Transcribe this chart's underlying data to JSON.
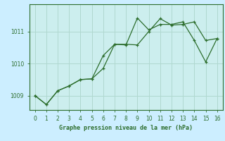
{
  "title": "Graphe pression niveau de la mer (hPa)",
  "background_color": "#cceeff",
  "plot_bg_color": "#cceeee",
  "line_color": "#2d6e2d",
  "grid_color": "#aaddcc",
  "xlim": [
    -0.5,
    16.5
  ],
  "ylim": [
    1008.55,
    1011.85
  ],
  "xticks": [
    0,
    1,
    2,
    3,
    4,
    5,
    6,
    7,
    8,
    9,
    10,
    11,
    12,
    13,
    14,
    15,
    16
  ],
  "yticks": [
    1009,
    1010,
    1011
  ],
  "series1_x": [
    0,
    1,
    2,
    3,
    4,
    5,
    6,
    7,
    8,
    9,
    10,
    11,
    12,
    13,
    14,
    15,
    16
  ],
  "series1_y": [
    1009.0,
    1008.72,
    1009.15,
    1009.3,
    1009.5,
    1009.52,
    1009.85,
    1010.6,
    1010.6,
    1010.58,
    1011.0,
    1011.4,
    1011.2,
    1011.22,
    1011.3,
    1010.72,
    1010.78
  ],
  "series2_x": [
    0,
    1,
    2,
    3,
    4,
    5,
    6,
    7,
    8,
    9,
    10,
    11,
    12,
    13,
    14,
    15,
    16
  ],
  "series2_y": [
    1009.0,
    1008.72,
    1009.15,
    1009.3,
    1009.5,
    1009.52,
    1010.25,
    1010.6,
    1010.58,
    1011.42,
    1011.05,
    1011.22,
    1011.22,
    1011.3,
    1010.72,
    1010.05,
    1010.78
  ]
}
